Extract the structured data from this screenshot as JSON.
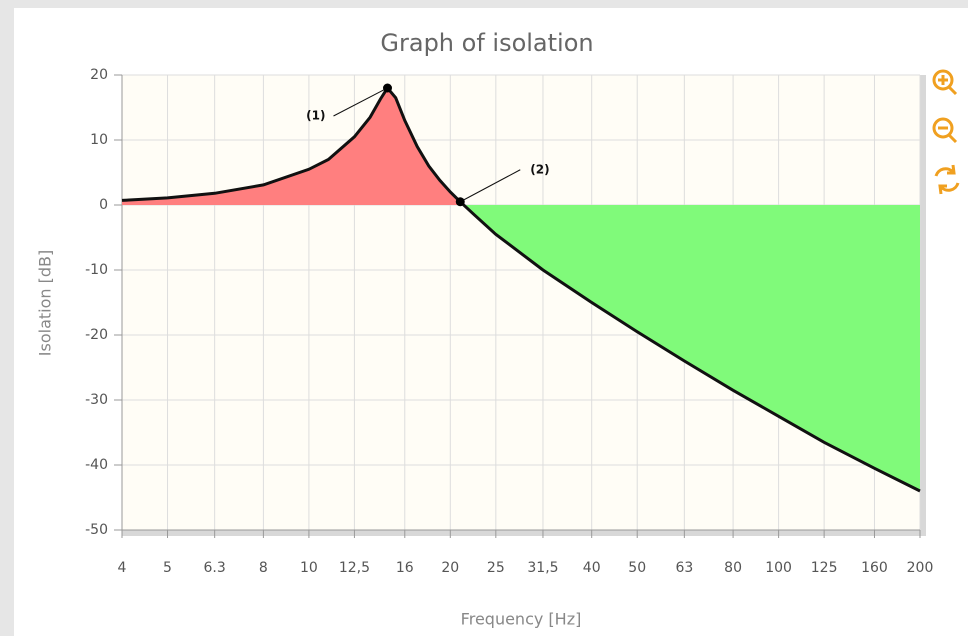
{
  "chart_data": {
    "type": "area",
    "title": "Graph of isolation",
    "x_label": "Frequency [Hz]",
    "y_label": "Isolation [dB]",
    "x": [
      4,
      5,
      6.3,
      8,
      10,
      11,
      12.5,
      13.5,
      14.2,
      14.7,
      15.3,
      16,
      17,
      18,
      19,
      20,
      21,
      22.5,
      25,
      31.5,
      40,
      50,
      63,
      80,
      100,
      125,
      160,
      200
    ],
    "values": [
      0.7,
      1.1,
      1.8,
      3.1,
      5.5,
      7,
      10.5,
      13.5,
      16.3,
      18,
      16.5,
      13,
      9,
      6,
      3.8,
      2,
      0.5,
      -1.5,
      -4.5,
      -10,
      -15,
      -19.5,
      -24,
      -28.5,
      -32.5,
      -36.5,
      -40.5,
      -44
    ],
    "color": "#111111",
    "positive_fill": "#ff7f7f",
    "negative_fill": "#80fa7a",
    "log_x": true,
    "xlim": [
      4,
      200
    ],
    "xticks": [
      4,
      5,
      6.3,
      8,
      10,
      {
        "value": 12.5,
        "label": "12,5"
      },
      16,
      20,
      25,
      {
        "value": 31.5,
        "label": "31,5"
      },
      40,
      50,
      63,
      80,
      100,
      125,
      160,
      200
    ],
    "ylim": [
      -50,
      20
    ],
    "yticks": [
      20,
      10,
      0,
      -10,
      -20,
      -30,
      -40,
      -50
    ],
    "grid": true,
    "annotations": [
      {
        "text": "(1)",
        "x": 14.7,
        "y": 18
      },
      {
        "text": "(2)",
        "x": 21,
        "y": 0.5
      }
    ]
  }
}
